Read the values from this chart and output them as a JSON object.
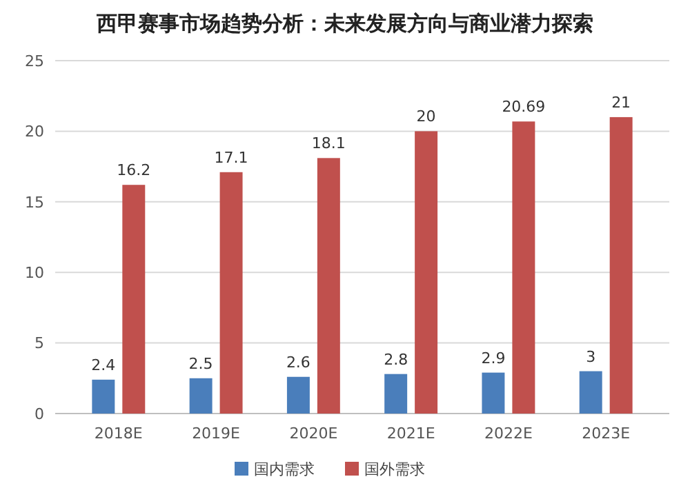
{
  "chart_data": {
    "type": "bar",
    "title": "西甲赛事市场趋势分析：未来发展方向与商业潜力探索",
    "categories": [
      "2018E",
      "2019E",
      "2020E",
      "2021E",
      "2022E",
      "2023E"
    ],
    "series": [
      {
        "name": "国内需求",
        "color": "#4a7ebb",
        "values": [
          2.4,
          2.5,
          2.6,
          2.8,
          2.9,
          3
        ]
      },
      {
        "name": "国外需求",
        "color": "#c0504d",
        "values": [
          16.2,
          17.1,
          18.1,
          20,
          20.69,
          21
        ]
      }
    ],
    "ylim": [
      0,
      25
    ],
    "yticks": [
      0,
      5,
      10,
      15,
      20,
      25
    ],
    "grid": "y",
    "legend": "bottom",
    "data_labels": true
  }
}
